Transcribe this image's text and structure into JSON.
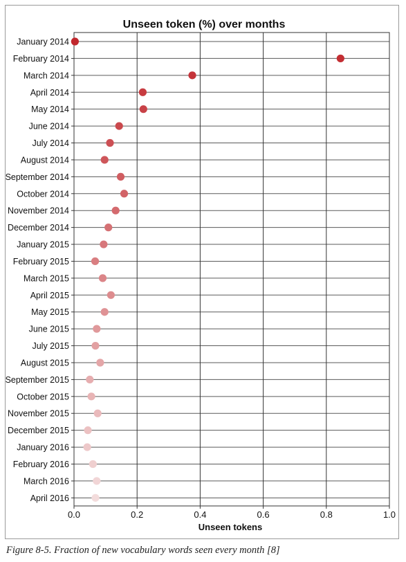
{
  "caption": "Figure 8-5. Fraction of new vocabulary words seen every month [8]",
  "chart_data": {
    "type": "scatter",
    "title": "Unseen token (%) over months",
    "xlabel": "Unseen tokens",
    "ylabel": "",
    "xlim": [
      0.0,
      1.0
    ],
    "x_ticks": [
      "0.0",
      "0.2",
      "0.4",
      "0.6",
      "0.8",
      "1.0"
    ],
    "grid": true,
    "categories": [
      "January 2014",
      "February 2014",
      "March 2014",
      "April 2014",
      "May 2014",
      "June 2014",
      "July 2014",
      "August 2014",
      "September 2014",
      "October 2014",
      "November 2014",
      "December 2014",
      "January 2015",
      "February 2015",
      "March 2015",
      "April 2015",
      "May 2015",
      "June 2015",
      "July 2015",
      "August 2015",
      "September 2015",
      "October 2015",
      "November 2015",
      "December 2015",
      "January 2016",
      "February 2016",
      "March 2016",
      "April 2016"
    ],
    "values": [
      0.003,
      0.845,
      0.375,
      0.218,
      0.22,
      0.143,
      0.114,
      0.097,
      0.148,
      0.159,
      0.132,
      0.109,
      0.094,
      0.067,
      0.091,
      0.117,
      0.097,
      0.072,
      0.068,
      0.083,
      0.05,
      0.055,
      0.075,
      0.044,
      0.042,
      0.06,
      0.072,
      0.068
    ],
    "color_start": "#c1272d",
    "color_end": "#f3dcdc"
  }
}
